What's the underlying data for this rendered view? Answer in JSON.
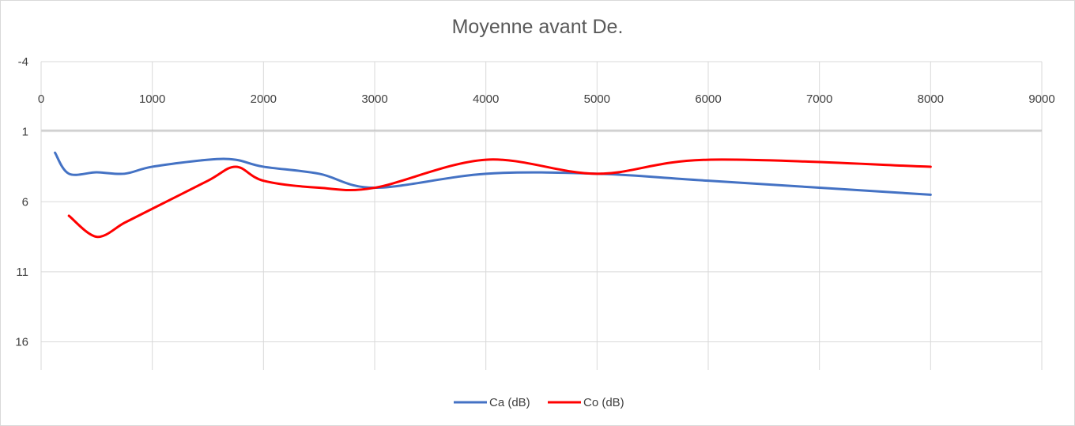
{
  "chart_data": {
    "type": "line",
    "title": "Moyenne avant De.",
    "xlabel": "",
    "ylabel": "",
    "xlim": [
      0,
      9000
    ],
    "ylim": [
      -4,
      18
    ],
    "y_inverted": true,
    "x_axis_position": "top",
    "x_ticks": [
      0,
      1000,
      2000,
      3000,
      4000,
      5000,
      6000,
      7000,
      8000,
      9000
    ],
    "y_ticks": [
      -4,
      1,
      6,
      11,
      16
    ],
    "grid": true,
    "legend_position": "bottom",
    "smooth": true,
    "series": [
      {
        "name": "Ca (dB)",
        "color": "#4472c4",
        "x": [
          125,
          250,
          500,
          750,
          1000,
          1500,
          1750,
          2000,
          2500,
          3000,
          4000,
          5000,
          6000,
          8000
        ],
        "y": [
          2.5,
          4.0,
          3.9,
          4.0,
          3.5,
          3.0,
          3.0,
          3.5,
          4.0,
          5.0,
          4.0,
          4.0,
          4.5,
          5.5
        ]
      },
      {
        "name": "Co (dB)",
        "color": "#ff0000",
        "x": [
          250,
          500,
          750,
          1000,
          1500,
          1750,
          2000,
          2500,
          3000,
          4000,
          5000,
          6000,
          8000
        ],
        "y": [
          7.0,
          8.5,
          7.5,
          6.5,
          4.5,
          3.5,
          4.5,
          5.0,
          5.0,
          3.0,
          4.0,
          3.0,
          3.5
        ]
      }
    ]
  }
}
